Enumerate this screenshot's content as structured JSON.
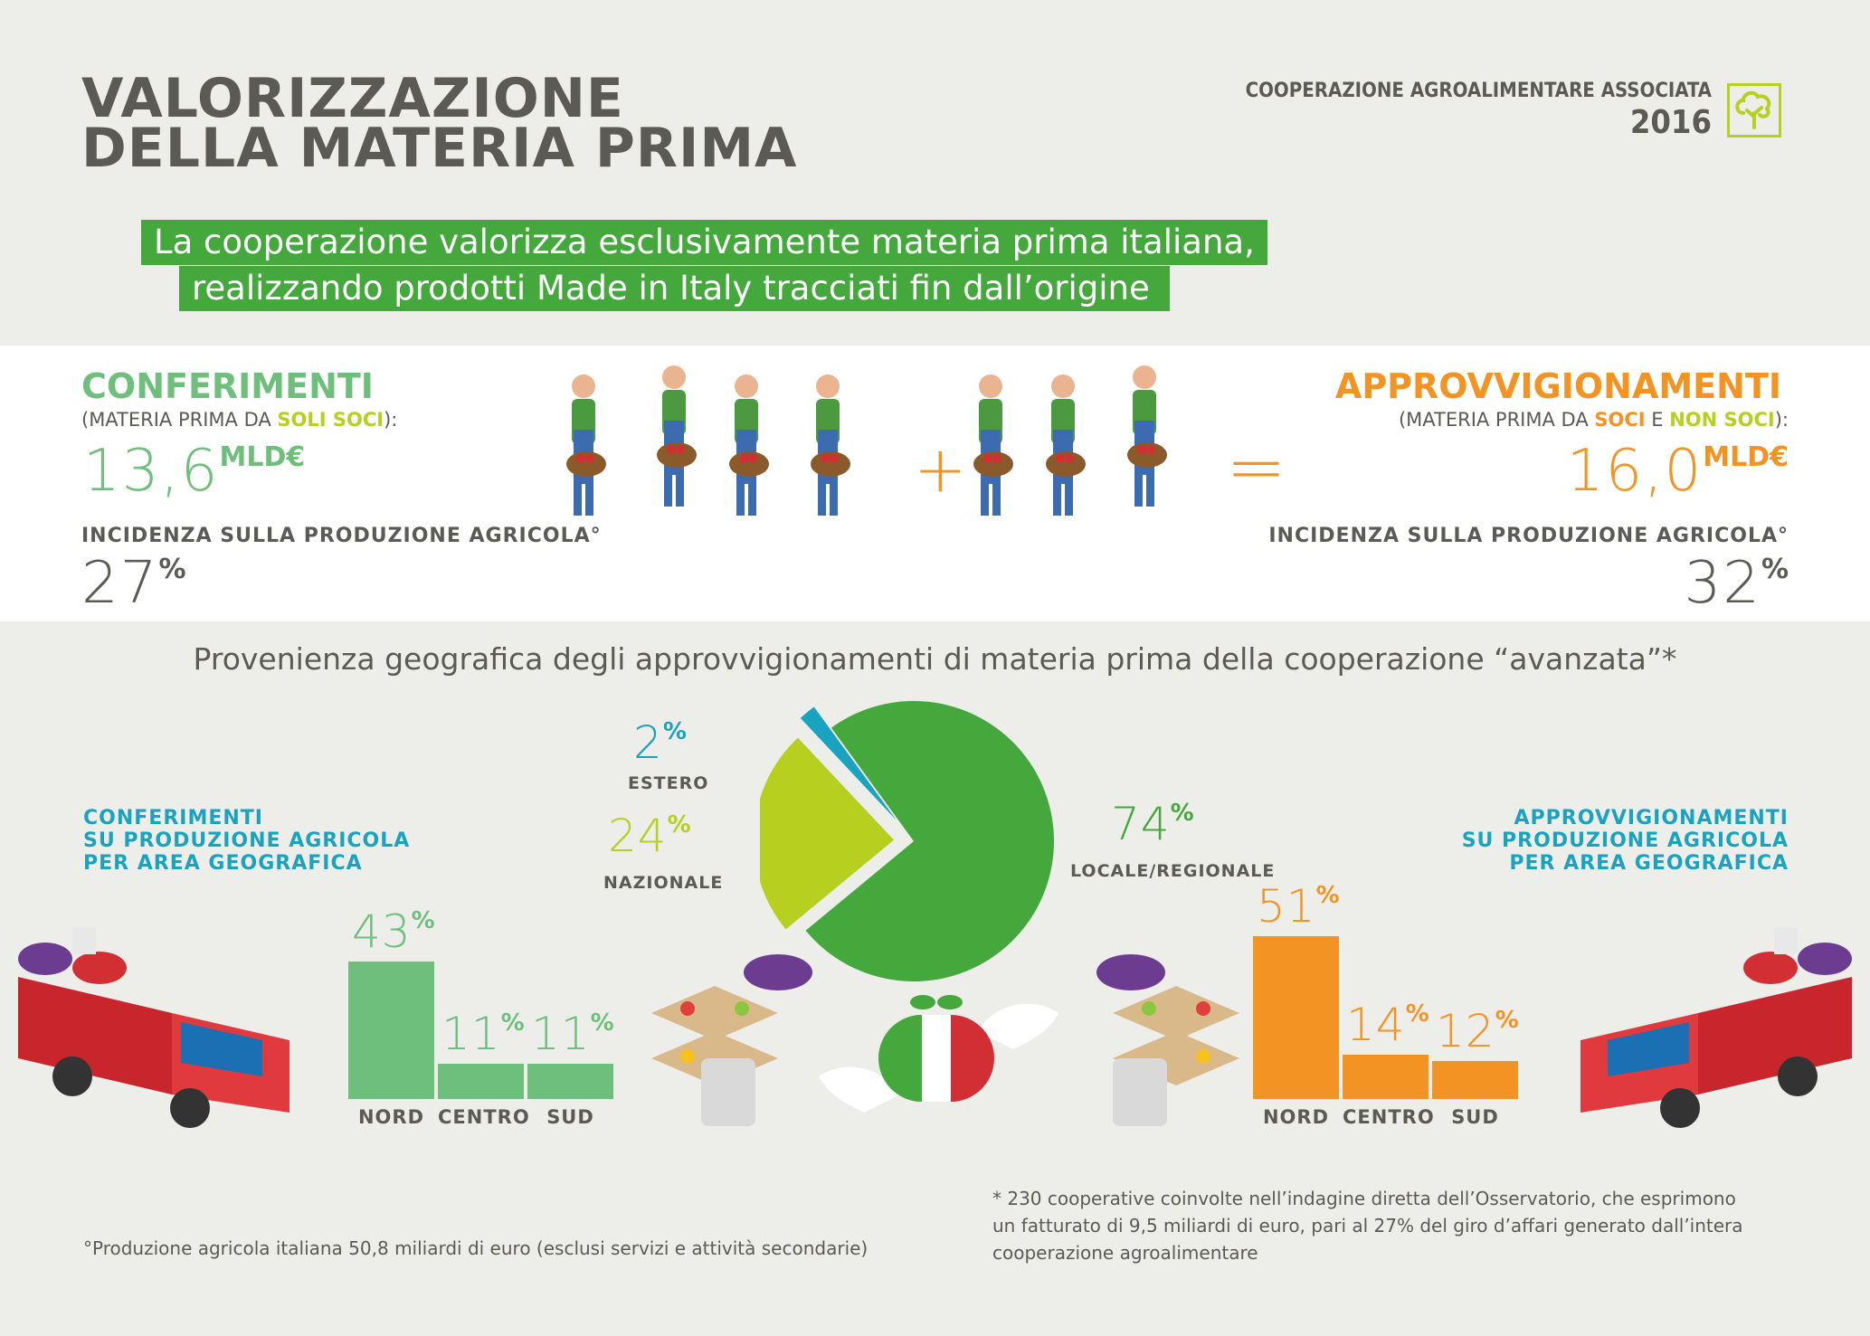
{
  "header": {
    "title_line1": "VALORIZZAZIONE",
    "title_line2": "DELLA MATERIA PRIMA",
    "org": "COOPERAZIONE AGROALIMENTARE ASSOCIATA",
    "year": "2016"
  },
  "banner": {
    "line1": "La cooperazione valorizza esclusivamente materia prima italiana,",
    "line2": "realizzando prodotti Made in Italy tracciati fin dall’origine"
  },
  "conferimenti": {
    "heading": "CONFERIMENTI",
    "sub_pre": "(MATERIA PRIMA DA ",
    "sub_hl": "SOLI SOCI",
    "sub_post": "):",
    "value": "13,6",
    "unit": "MLD€",
    "incidenza_label": "INCIDENZA SULLA PRODUZIONE AGRICOLA°",
    "incidenza_value": "27",
    "pct": "%"
  },
  "approvvigionamenti": {
    "heading": "APPROVVIGIONAMENTI",
    "sub_pre": "(MATERIA PRIMA DA ",
    "sub_hl1": "SOCI",
    "sub_mid": " E ",
    "sub_hl2": "NON SOCI",
    "sub_post": "):",
    "value": "16,0",
    "unit": "MLD€",
    "incidenza_label": "INCIDENZA SULLA PRODUZIONE AGRICOLA°",
    "incidenza_value": "32",
    "pct": "%"
  },
  "equation": {
    "plus": "+",
    "equals": "="
  },
  "pie_title": "Provenienza geografica degli approvvigionamenti di materia prima della cooperazione “avanzata”*",
  "geo_left": {
    "line1": "CONFERIMENTI",
    "line2": "SU PRODUZIONE AGRICOLA",
    "line3": "PER AREA GEOGRAFICA"
  },
  "geo_right": {
    "line1": "APPROVVIGIONAMENTI",
    "line2": "SU PRODUZIONE AGRICOLA",
    "line3": "PER AREA GEOGRAFICA"
  },
  "chart_data": [
    {
      "type": "pie",
      "slices": [
        {
          "label": "LOCALE/REGIONALE",
          "value": 74,
          "color": "#45a83c"
        },
        {
          "label": "NAZIONALE",
          "value": 24,
          "color": "#b7cf1f"
        },
        {
          "label": "ESTERO",
          "value": 2,
          "color": "#1aa3bf"
        }
      ],
      "value_suffix": "%"
    },
    {
      "type": "bar",
      "categories": [
        "NORD",
        "CENTRO",
        "SUD"
      ],
      "values": [
        43,
        11,
        11
      ],
      "color": "#6fbf7c",
      "value_suffix": "%"
    },
    {
      "type": "bar",
      "categories": [
        "NORD",
        "CENTRO",
        "SUD"
      ],
      "values": [
        51,
        14,
        12
      ],
      "color": "#f39323",
      "value_suffix": "%"
    }
  ],
  "footnotes": {
    "left": "°Produzione agricola italiana 50,8 miliardi di euro (esclusi servizi e attività secondarie)",
    "right1": "* 230 cooperative coinvolte nell’indagine diretta dell’Osservatorio, che esprimono",
    "right2": "un fatturato di 9,5 miliardi di euro, pari al 27% del giro d’affari generato dall’intera",
    "right3": "cooperazione agroalimentare"
  },
  "colors": {
    "green": "#45a83c",
    "lime": "#b7cf1f",
    "teal": "#1aa3bf",
    "orange": "#f39323",
    "lightgreen": "#6fbf7c"
  }
}
